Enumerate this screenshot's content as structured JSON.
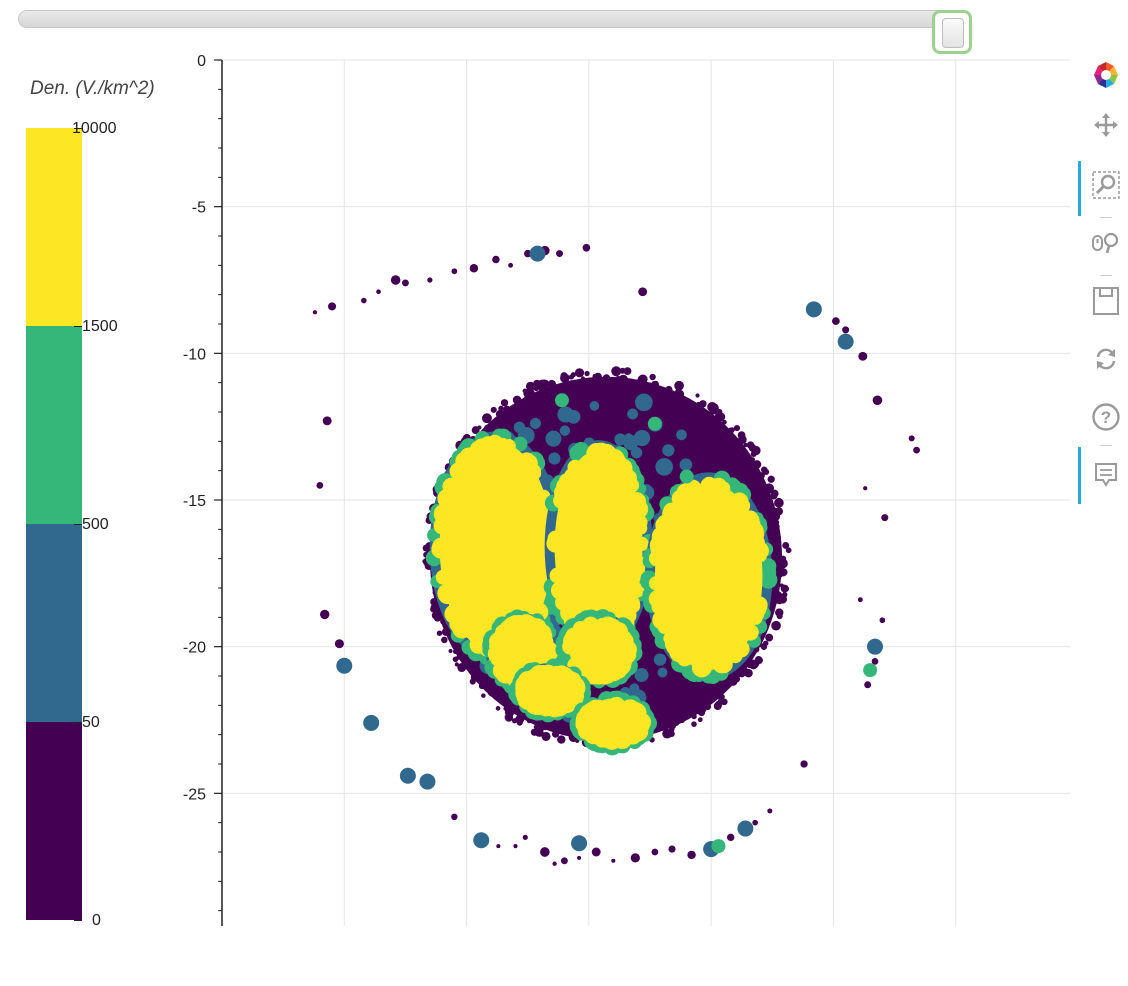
{
  "slider": {
    "value_fraction": 0.985
  },
  "colorbar": {
    "title": "Den. (V./km^2)",
    "ticks": [
      "10000",
      "1500",
      "500",
      "50",
      "0"
    ],
    "colors": [
      "#fde725",
      "#35b779",
      "#31688e",
      "#440154"
    ]
  },
  "toolbar": {
    "logo_icon": "bokeh-logo-icon",
    "tools": [
      "pan-icon",
      "box-zoom-icon",
      "wheel-zoom-icon",
      "save-icon",
      "reset-icon",
      "help-icon",
      "hover-icon"
    ]
  },
  "chart_data": {
    "type": "scatter",
    "title": "",
    "xlabel": "",
    "ylabel": "",
    "xlim": [
      -80,
      -45
    ],
    "ylim": [
      -30,
      0
    ],
    "x_ticks": [
      "-80",
      "-75",
      "-70",
      "-65",
      "-60",
      "-55",
      "-50",
      "-45"
    ],
    "y_ticks": [
      "0",
      "-5",
      "-10",
      "-15",
      "-20",
      "-25",
      "-30"
    ],
    "grid": true,
    "color_bins": [
      {
        "range": "0-50",
        "color": "#440154"
      },
      {
        "range": "50-500",
        "color": "#31688e"
      },
      {
        "range": "500-1500",
        "color": "#35b779"
      },
      {
        "range": "1500-10000",
        "color": "#fde725"
      }
    ],
    "regions": [
      {
        "description": "main disc",
        "center": [
          -64.3,
          -17.0
        ],
        "radius_x": 7.2,
        "radius_y": 6.2,
        "bin": "0-50"
      },
      {
        "center": [
          -68.8,
          -16.6
        ],
        "rx": 2.3,
        "ry": 3.6,
        "bin": "1500-10000"
      },
      {
        "center": [
          -64.6,
          -16.6
        ],
        "rx": 1.8,
        "ry": 3.3,
        "bin": "1500-10000"
      },
      {
        "center": [
          -60.1,
          -17.6
        ],
        "rx": 2.2,
        "ry": 3.2,
        "bin": "1500-10000"
      },
      {
        "center": [
          -67.7,
          -20.2
        ],
        "rx": 1.1,
        "ry": 1.0,
        "bin": "1500-10000"
      },
      {
        "center": [
          -64.6,
          -20.1
        ],
        "rx": 1.2,
        "ry": 0.9,
        "bin": "1500-10000"
      },
      {
        "center": [
          -66.6,
          -21.5
        ],
        "rx": 1.1,
        "ry": 0.6,
        "bin": "1500-10000"
      },
      {
        "center": [
          -64.0,
          -22.6
        ],
        "rx": 1.2,
        "ry": 0.6,
        "bin": "1500-10000"
      }
    ],
    "points": [
      {
        "x": -75.0,
        "y": -20.65,
        "bin": "50-500"
      },
      {
        "x": -73.9,
        "y": -22.6,
        "bin": "50-500"
      },
      {
        "x": -72.4,
        "y": -24.4,
        "bin": "50-500"
      },
      {
        "x": -71.6,
        "y": -24.6,
        "bin": "50-500"
      },
      {
        "x": -69.4,
        "y": -26.6,
        "bin": "50-500"
      },
      {
        "x": -65.4,
        "y": -26.7,
        "bin": "50-500"
      },
      {
        "x": -67.1,
        "y": -6.6,
        "bin": "50-500"
      },
      {
        "x": -55.8,
        "y": -8.5,
        "bin": "50-500"
      },
      {
        "x": -54.5,
        "y": -9.6,
        "bin": "50-500"
      },
      {
        "x": -53.5,
        "y": -20.8,
        "bin": "500-1500"
      },
      {
        "x": -53.3,
        "y": -20.0,
        "bin": "50-500"
      },
      {
        "x": -60.0,
        "y": -26.9,
        "bin": "50-500"
      },
      {
        "x": -59.7,
        "y": -26.8,
        "bin": "500-1500"
      },
      {
        "x": -58.6,
        "y": -26.2,
        "bin": "50-500"
      },
      {
        "x": -66.1,
        "y": -11.6,
        "bin": "500-1500"
      },
      {
        "x": -62.3,
        "y": -12.4,
        "bin": "500-1500"
      },
      {
        "x": -61.0,
        "y": -14.2,
        "bin": "500-1500"
      }
    ]
  }
}
